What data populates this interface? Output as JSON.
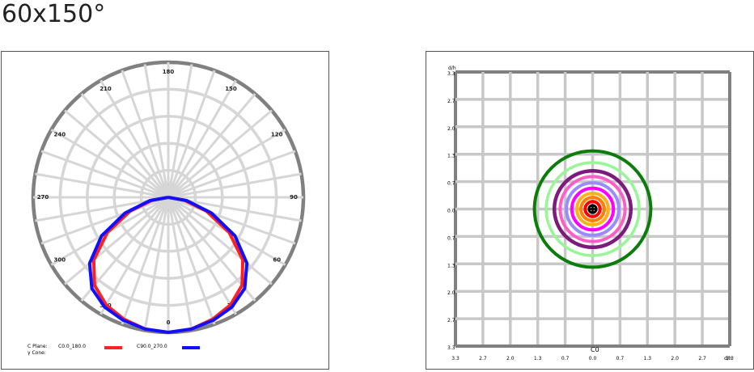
{
  "title": "60x150°",
  "polar": {
    "angle_labels": [
      {
        "label": "180",
        "deg": 180
      },
      {
        "label": "150",
        "deg": 150
      },
      {
        "label": "120",
        "deg": 120
      },
      {
        "label": "90",
        "deg": 90
      },
      {
        "label": "60",
        "deg": 60
      },
      {
        "label": "30",
        "deg": 30
      },
      {
        "label": "0",
        "deg": 0
      },
      {
        "label": "330",
        "deg": -30
      },
      {
        "label": "300",
        "deg": -60
      },
      {
        "label": "270",
        "deg": -90
      },
      {
        "label": "240",
        "deg": -120
      },
      {
        "label": "210",
        "deg": -150
      }
    ],
    "legend": {
      "c_plane_label": "C Plane:",
      "gamma_label": "γ Cone:",
      "series": [
        {
          "name": "C0.0_180.0",
          "color": "#ff2020"
        },
        {
          "name": "C90.0_270.0",
          "color": "#1010ff"
        }
      ]
    }
  },
  "iso": {
    "corner_label_left": "d/h",
    "corner_label_bottom": "d/h",
    "center_label": "C0",
    "y_ticks": [
      "3.3",
      "2.7",
      "2.0",
      "1.3",
      "0.7",
      "0.0",
      "0.7",
      "1.3",
      "2.0",
      "2.7",
      "3.3"
    ],
    "x_ticks": [
      "3.3",
      "2.7",
      "2.0",
      "1.3",
      "0.7",
      "0.0",
      "0.7",
      "1.3",
      "2.0",
      "2.7",
      "3.3"
    ],
    "contour_colors": [
      "#0b7d0b",
      "#98f598",
      "#7d1a7d",
      "#ff5ec8",
      "#9a8cff",
      "#ff00ff",
      "#ffb020",
      "#ff8000",
      "#ff0000",
      "#000000"
    ]
  },
  "chart_data": [
    {
      "type": "polar",
      "angle_ticks": [
        0,
        30,
        60,
        90,
        120,
        150,
        180,
        210,
        240,
        270,
        300,
        330
      ],
      "series": [
        {
          "name": "C0.0_180.0",
          "values": [
            [
              0,
              1.0
            ],
            [
              10,
              0.99
            ],
            [
              20,
              0.96
            ],
            [
              30,
              0.92
            ],
            [
              40,
              0.85
            ],
            [
              50,
              0.72
            ],
            [
              60,
              0.52
            ],
            [
              70,
              0.3
            ],
            [
              80,
              0.12
            ],
            [
              90,
              0.0
            ]
          ]
        },
        {
          "name": "C90.0_270.0",
          "values": [
            [
              0,
              1.0
            ],
            [
              10,
              0.99
            ],
            [
              20,
              0.97
            ],
            [
              30,
              0.94
            ],
            [
              40,
              0.88
            ],
            [
              50,
              0.76
            ],
            [
              60,
              0.57
            ],
            [
              70,
              0.34
            ],
            [
              80,
              0.14
            ],
            [
              90,
              0.0
            ]
          ]
        }
      ]
    },
    {
      "type": "contour",
      "xlabel": "d/h",
      "ylabel": "d/h",
      "xlim": [
        -3.3,
        3.3
      ],
      "ylim": [
        -3.3,
        3.3
      ],
      "label": "C0",
      "contour_radii": [
        1.4,
        1.12,
        0.92,
        0.78,
        0.63,
        0.5,
        0.38,
        0.28,
        0.18,
        0.09
      ]
    }
  ]
}
